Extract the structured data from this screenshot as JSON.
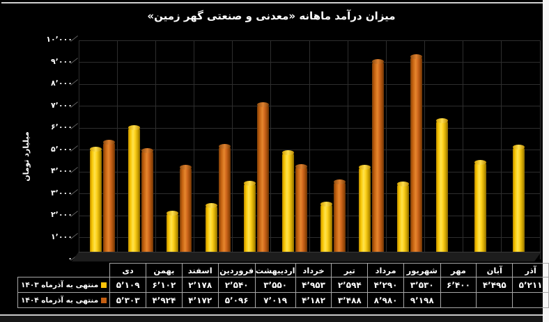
{
  "title": "میزان درآمد ماهانه «معدنی و صنعتی گهر زمین»",
  "y_axis": {
    "title": "میلیارد تومان",
    "ticks": [
      "۱۰٬۰۰۰",
      "۹٬۰۰۰",
      "۸٬۰۰۰",
      "۷٬۰۰۰",
      "۶٬۰۰۰",
      "۵٬۰۰۰",
      "۴٬۰۰۰",
      "۳٬۰۰۰",
      "۲٬۰۰۰",
      "۱٬۰۰۰",
      "۰"
    ]
  },
  "colors": {
    "background": "#000000",
    "text": "#ffffff",
    "series1": "#fdc40a",
    "series2": "#c55f12",
    "grid": "#2e2e2e",
    "table_border": "#a8a8a8"
  },
  "chart_data": {
    "type": "bar",
    "title": "میزان درآمد ماهانه «معدنی و صنعتی گهر زمین»",
    "ylabel": "میلیارد تومان",
    "ylim": [
      0,
      10000
    ],
    "y_step": 1000,
    "grid": true,
    "legend_position": "data-table-left",
    "categories": [
      "دی",
      "بهمن",
      "اسفند",
      "فروردین",
      "اردیبهشت",
      "خرداد",
      "تیر",
      "مرداد",
      "شهریور",
      "مهر",
      "آبان",
      "آذر"
    ],
    "series": [
      {
        "name": "منتهی به آذرماه ۱۴۰۳",
        "color": "#fdc40a",
        "values": [
          5109,
          6102,
          2178,
          2540,
          3550,
          4953,
          2594,
          4290,
          3530,
          6400,
          4495,
          5211
        ],
        "display": [
          "۵٬۱۰۹",
          "۶٬۱۰۲",
          "۲٬۱۷۸",
          "۲٬۵۴۰",
          "۳٬۵۵۰",
          "۴٬۹۵۳",
          "۲٬۵۹۴",
          "۴٬۲۹۰",
          "۳٬۵۳۰",
          "۶٬۴۰۰",
          "۴٬۴۹۵",
          "۵٬۲۱۱"
        ]
      },
      {
        "name": "منتهی به آذرماه ۱۴۰۴",
        "color": "#c55f12",
        "values": [
          5303,
          4924,
          4172,
          5096,
          7019,
          4182,
          3488,
          8980,
          9198,
          null,
          null,
          null
        ],
        "display": [
          "۵٬۳۰۳",
          "۴٬۹۲۴",
          "۴٬۱۷۲",
          "۵٬۰۹۶",
          "۷٬۰۱۹",
          "۴٬۱۸۲",
          "۳٬۴۸۸",
          "۸٬۹۸۰",
          "۹٬۱۹۸",
          "",
          "",
          ""
        ]
      }
    ]
  }
}
